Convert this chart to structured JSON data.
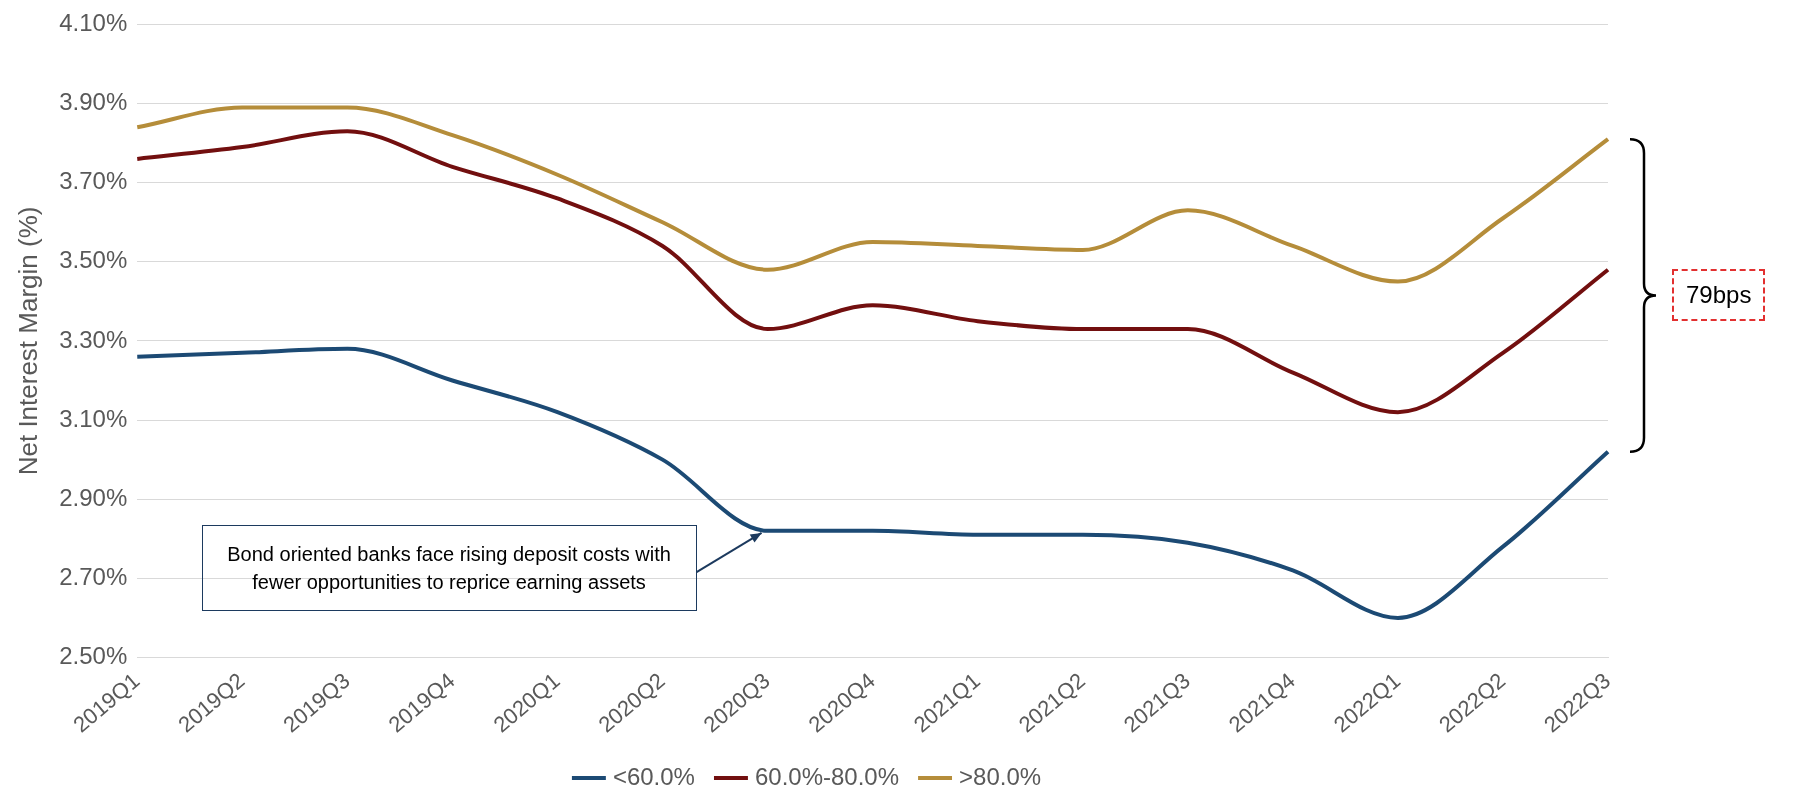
{
  "chart_data": {
    "type": "line",
    "ylabel": "Net Interest Margin (%)",
    "categories": [
      "2019Q1",
      "2019Q2",
      "2019Q3",
      "2019Q4",
      "2020Q1",
      "2020Q2",
      "2020Q3",
      "2020Q4",
      "2021Q1",
      "2021Q2",
      "2021Q3",
      "2021Q4",
      "2022Q1",
      "2022Q2",
      "2022Q3"
    ],
    "series": [
      {
        "name": "<60.0%",
        "color": "#1c4a74",
        "values": [
          3.26,
          3.27,
          3.28,
          3.2,
          3.12,
          3.0,
          2.82,
          2.82,
          2.81,
          2.81,
          2.79,
          2.72,
          2.6,
          2.78,
          3.02
        ]
      },
      {
        "name": "60.0%-80.0%",
        "color": "#720f0f",
        "values": [
          3.76,
          3.79,
          3.83,
          3.74,
          3.66,
          3.54,
          3.33,
          3.39,
          3.35,
          3.33,
          3.33,
          3.22,
          3.12,
          3.27,
          3.48
        ]
      },
      {
        "name": ">80.0%",
        "color": "#b58d3a",
        "values": [
          3.84,
          3.89,
          3.89,
          3.82,
          3.72,
          3.6,
          3.48,
          3.55,
          3.54,
          3.53,
          3.63,
          3.54,
          3.45,
          3.61,
          3.81
        ]
      }
    ],
    "ylim": [
      2.5,
      4.1
    ],
    "yticks": [
      {
        "value": 2.5,
        "label": "2.50%"
      },
      {
        "value": 2.7,
        "label": "2.70%"
      },
      {
        "value": 2.9,
        "label": "2.90%"
      },
      {
        "value": 3.1,
        "label": "3.10%"
      },
      {
        "value": 3.3,
        "label": "3.30%"
      },
      {
        "value": 3.5,
        "label": "3.50%"
      },
      {
        "value": 3.7,
        "label": "3.70%"
      },
      {
        "value": 3.9,
        "label": "3.90%"
      },
      {
        "value": 4.1,
        "label": "4.10%"
      }
    ],
    "grid": "y",
    "legend": "bottom",
    "marker": "none",
    "line_style": "solid",
    "annotations": [
      {
        "text": "Bond oriented banks face rising deposit costs with fewer opportunities to reprice earning assets",
        "x": "2020Q3",
        "y": 2.83
      },
      "79bps"
    ]
  }
}
